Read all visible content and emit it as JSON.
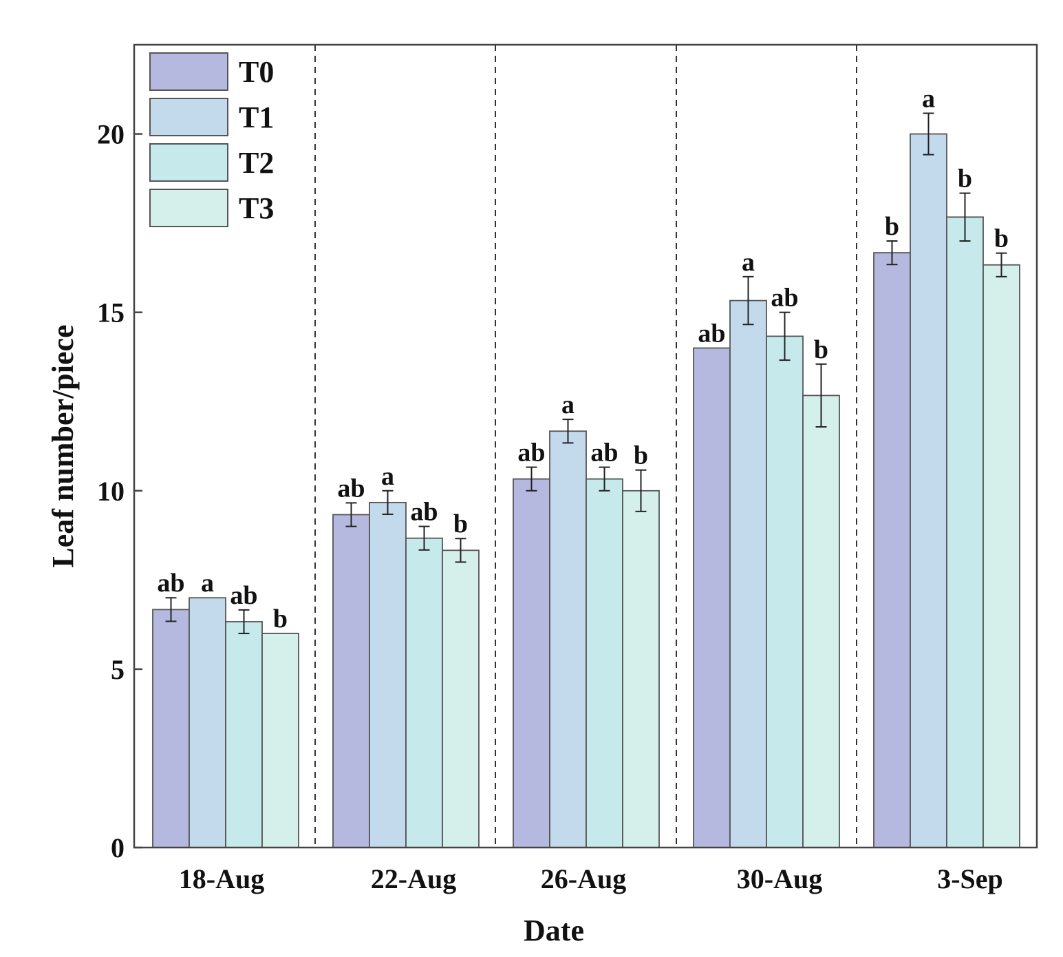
{
  "chart_data": {
    "type": "bar",
    "title": "",
    "xlabel": "Date",
    "ylabel": "Leaf number/piece",
    "categories": [
      "18-Aug",
      "22-Aug",
      "26-Aug",
      "30-Aug",
      "3-Sep"
    ],
    "ylim": [
      0,
      22.5
    ],
    "yticks": [
      0,
      5,
      10,
      15,
      20
    ],
    "grid": false,
    "category_separators": "dashed",
    "legend_position": "top-left",
    "series": [
      {
        "name": "T0",
        "color": "#b5b9e0",
        "values": [
          6.67,
          9.33,
          10.33,
          14.0,
          16.67
        ],
        "errors": [
          0.33,
          0.33,
          0.33,
          0,
          0.33
        ],
        "labels": [
          "ab",
          "ab",
          "ab",
          "ab",
          "b"
        ]
      },
      {
        "name": "T1",
        "color": "#c3d9ec",
        "values": [
          7.0,
          9.67,
          11.67,
          15.33,
          20.0
        ],
        "errors": [
          0,
          0.33,
          0.33,
          0.67,
          0.58
        ],
        "labels": [
          "a",
          "a",
          "a",
          "a",
          "a"
        ]
      },
      {
        "name": "T2",
        "color": "#c6e9ec",
        "values": [
          6.33,
          8.67,
          10.33,
          14.33,
          17.67
        ],
        "errors": [
          0.33,
          0.33,
          0.33,
          0.67,
          0.67
        ],
        "labels": [
          "ab",
          "ab",
          "ab",
          "ab",
          "b"
        ]
      },
      {
        "name": "T3",
        "color": "#d5efea",
        "values": [
          6.0,
          8.33,
          10.0,
          12.67,
          16.33
        ],
        "errors": [
          0,
          0.33,
          0.58,
          0.88,
          0.33
        ],
        "labels": [
          "b",
          "b",
          "b",
          "b",
          "b"
        ]
      }
    ]
  }
}
